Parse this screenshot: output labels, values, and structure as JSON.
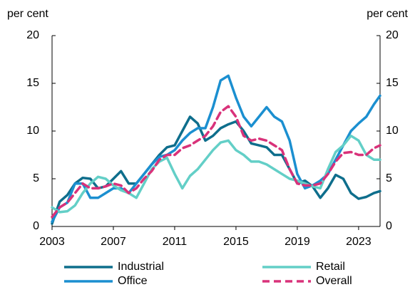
{
  "chart_data": {
    "type": "line",
    "y_label": "per cent",
    "y2_label": "per cent",
    "x": [
      2003,
      2003.5,
      2004,
      2004.5,
      2005,
      2005.5,
      2006,
      2006.5,
      2007,
      2007.5,
      2008,
      2008.5,
      2009,
      2009.5,
      2010,
      2010.5,
      2011,
      2011.5,
      2012,
      2012.5,
      2013,
      2013.5,
      2014,
      2014.5,
      2015,
      2015.5,
      2016,
      2016.5,
      2017,
      2017.5,
      2018,
      2018.5,
      2019,
      2019.5,
      2020,
      2020.5,
      2021,
      2021.5,
      2022,
      2022.5,
      2023,
      2023.5,
      2024,
      2024.4
    ],
    "series": [
      {
        "name": "Industrial",
        "color": "#0e6e8c",
        "dash": false,
        "values": [
          0.3,
          2.6,
          3.3,
          4.5,
          5.1,
          5,
          4,
          4.2,
          5,
          5.8,
          4.5,
          4.5,
          5.5,
          6.5,
          7.5,
          8.3,
          8.5,
          10,
          11.5,
          10.8,
          9,
          9.5,
          10.3,
          10.7,
          11,
          10,
          8.7,
          8.5,
          8.3,
          7.5,
          7.5,
          6,
          4.5,
          4.8,
          4.2,
          3,
          4,
          5.4,
          5,
          3.5,
          2.9,
          3.1,
          3.5,
          3.7
        ]
      },
      {
        "name": "Office",
        "color": "#1b8fd0",
        "dash": false,
        "values": [
          0.5,
          2,
          2.5,
          4.5,
          4.5,
          3,
          3,
          3.5,
          4,
          4,
          3.5,
          4.5,
          5.5,
          6.5,
          7.3,
          7.5,
          8,
          9,
          9.8,
          10.3,
          10.3,
          12.5,
          15.3,
          15.8,
          13.5,
          11.5,
          10.5,
          11.5,
          12.5,
          11.5,
          11,
          9,
          5.5,
          4,
          4.3,
          4.8,
          5.5,
          7,
          8.5,
          10,
          10.8,
          11.5,
          12.8,
          13.7
        ]
      },
      {
        "name": "Retail",
        "color": "#63cfc7",
        "dash": false,
        "values": [
          2,
          1.5,
          1.6,
          2.2,
          3.5,
          4.5,
          5.2,
          5,
          4.3,
          3.8,
          3.5,
          3,
          4.5,
          6,
          6.8,
          7.2,
          5.5,
          4,
          5.3,
          6,
          7,
          8,
          8.8,
          9,
          8,
          7.5,
          6.8,
          6.8,
          6.5,
          6,
          5.5,
          5,
          4.8,
          4.5,
          4.2,
          4,
          6,
          7.8,
          8.5,
          9.5,
          9,
          7.5,
          7,
          7
        ]
      },
      {
        "name": "Overall",
        "color": "#d9327a",
        "dash": true,
        "values": [
          1,
          2,
          2.5,
          3.5,
          4.5,
          4,
          4,
          4.2,
          4.5,
          4.3,
          3.5,
          4,
          5,
          5.8,
          7,
          7.5,
          7.5,
          8.2,
          8.5,
          9,
          9.5,
          10.5,
          12,
          12.6,
          11.5,
          9.5,
          9,
          9.2,
          9,
          8.5,
          8,
          6,
          4.5,
          4.3,
          4.3,
          4.5,
          5.5,
          6.8,
          7.7,
          7.8,
          7.5,
          7.5,
          8.2,
          8.5
        ]
      }
    ],
    "xlim": [
      2003,
      2024.4
    ],
    "xticks": [
      2003,
      2007,
      2011,
      2015,
      2019,
      2023
    ],
    "ylim": [
      0,
      20
    ],
    "yticks": [
      0,
      5,
      10,
      15,
      20
    ],
    "y2lim": [
      0,
      20
    ],
    "y2ticks": [
      0,
      5,
      10,
      15,
      20
    ]
  }
}
